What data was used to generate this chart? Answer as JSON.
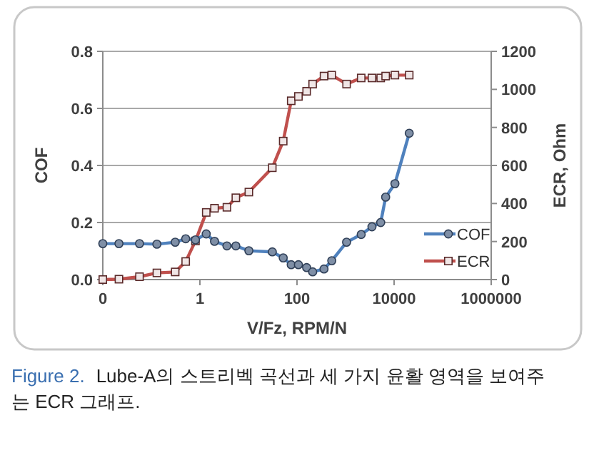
{
  "chart_data": {
    "type": "line",
    "xlabel": "V/Fz, RPM/N",
    "ylabel": "COF",
    "y2label": "ECR, Ohm",
    "log": "x",
    "grid": "y",
    "legend": "right",
    "xlim": [
      0.01,
      1000000
    ],
    "xticks": [
      {
        "value": 0.01,
        "label": "0"
      },
      1,
      100,
      10000,
      1000000
    ],
    "ylim": [
      0,
      0.8
    ],
    "yticks": [
      {
        "value": 0,
        "label": "0.0"
      },
      {
        "value": 0.2,
        "label": "0.2"
      },
      {
        "value": 0.4,
        "label": "0.4"
      },
      {
        "value": 0.6,
        "label": "0.6"
      },
      {
        "value": 0.8,
        "label": "0.8"
      }
    ],
    "y2lim": [
      0,
      1200
    ],
    "y2ticks": [
      0,
      200,
      400,
      600,
      800,
      1000,
      1200
    ],
    "x": [
      0.01,
      0.0215,
      0.057,
      0.13,
      0.31,
      0.51,
      0.81,
      1.35,
      2.0,
      3.6,
      5.5,
      10.2,
      31,
      52,
      76,
      107,
      158,
      210,
      360,
      520,
      1050,
      2100,
      3500,
      5300,
      6700,
      10400,
      20500
    ],
    "series": [
      {
        "name": "COF",
        "color": "#4f81bd",
        "marker": "circle",
        "values": [
          0.126,
          0.126,
          0.126,
          0.124,
          0.131,
          0.143,
          0.139,
          0.16,
          0.134,
          0.118,
          0.118,
          0.101,
          0.097,
          0.076,
          0.052,
          0.052,
          0.042,
          0.027,
          0.037,
          0.066,
          0.131,
          0.158,
          0.185,
          0.2,
          0.289,
          0.336,
          0.513
        ]
      },
      {
        "name": "ECR",
        "color": "#c0504d",
        "marker": "square",
        "axis": "y2",
        "values": [
          0,
          2,
          15,
          35,
          40,
          95,
          203,
          353,
          375,
          380,
          430,
          460,
          588,
          728,
          940,
          963,
          990,
          1028,
          1070,
          1075,
          1028,
          1060,
          1060,
          1060,
          1070,
          1075,
          1075
        ]
      }
    ],
    "annotations": [
      "Figure 2.",
      "Lube-A의 스트리벡 곡선과 세 가지 윤활 영역을 보여주는 ECR 그래프."
    ]
  }
}
